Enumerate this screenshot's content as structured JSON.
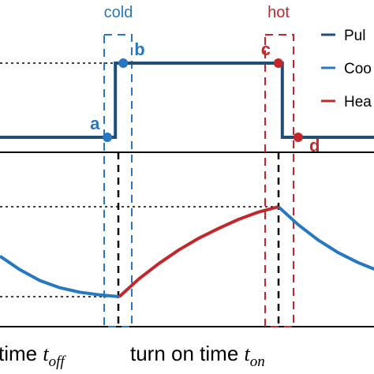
{
  "chart_data": [
    {
      "type": "line",
      "panel": "top",
      "description_labels": {
        "cold": "cold",
        "hot": "hot"
      },
      "series": [
        {
          "name": "Pulse",
          "color": "#1f4e79",
          "x": [
            0,
            0.29,
            0.29,
            0.71,
            0.71,
            1.0
          ],
          "y": [
            0,
            0,
            1,
            1,
            0,
            0
          ]
        }
      ],
      "points": [
        {
          "label": "a",
          "x": 0.27,
          "y": 0,
          "color": "#2678c1"
        },
        {
          "label": "b",
          "x": 0.31,
          "y": 1,
          "color": "#2678c1"
        },
        {
          "label": "c",
          "x": 0.7,
          "y": 1,
          "color": "#c0282d"
        },
        {
          "label": "d",
          "x": 0.75,
          "y": 0,
          "color": "#c0282d"
        }
      ],
      "legend": {
        "placement": "right",
        "entries": [
          {
            "label": "Pul",
            "color": "#1f4e79"
          },
          {
            "label": "Coo",
            "color": "#2678c1"
          },
          {
            "label": "Hea",
            "color": "#c0282d"
          }
        ]
      },
      "grid": false
    },
    {
      "type": "line",
      "panel": "bottom",
      "series": [
        {
          "name": "Cooling",
          "color": "#2678c1",
          "segments": [
            {
              "x": [
                0.0,
                0.05,
                0.1,
                0.15,
                0.2,
                0.25,
                0.3
              ],
              "y": [
                0.45,
                0.3,
                0.18,
                0.1,
                0.05,
                0.02,
                0.0
              ]
            },
            {
              "x": [
                0.7,
                0.75,
                0.8,
                0.85,
                0.9,
                0.95,
                1.0
              ],
              "y": [
                1.0,
                0.8,
                0.63,
                0.49,
                0.38,
                0.29,
                0.22
              ]
            }
          ]
        },
        {
          "name": "Heating",
          "color": "#c0282d",
          "segments": [
            {
              "x": [
                0.3,
                0.35,
                0.4,
                0.45,
                0.5,
                0.55,
                0.6,
                0.65,
                0.7
              ],
              "y": [
                0.0,
                0.2,
                0.37,
                0.52,
                0.65,
                0.76,
                0.86,
                0.94,
                1.0
              ]
            }
          ]
        }
      ],
      "xlabels": {
        "off": {
          "text": "time ",
          "symbol": "t",
          "sub": "off"
        },
        "on": {
          "text": "turn on time ",
          "symbol": "t",
          "sub": "on"
        }
      },
      "grid": false
    }
  ],
  "colors": {
    "pulse": "#1f4e79",
    "cold": "#2678c1",
    "hot": "#c0282d",
    "axis": "#000000"
  }
}
